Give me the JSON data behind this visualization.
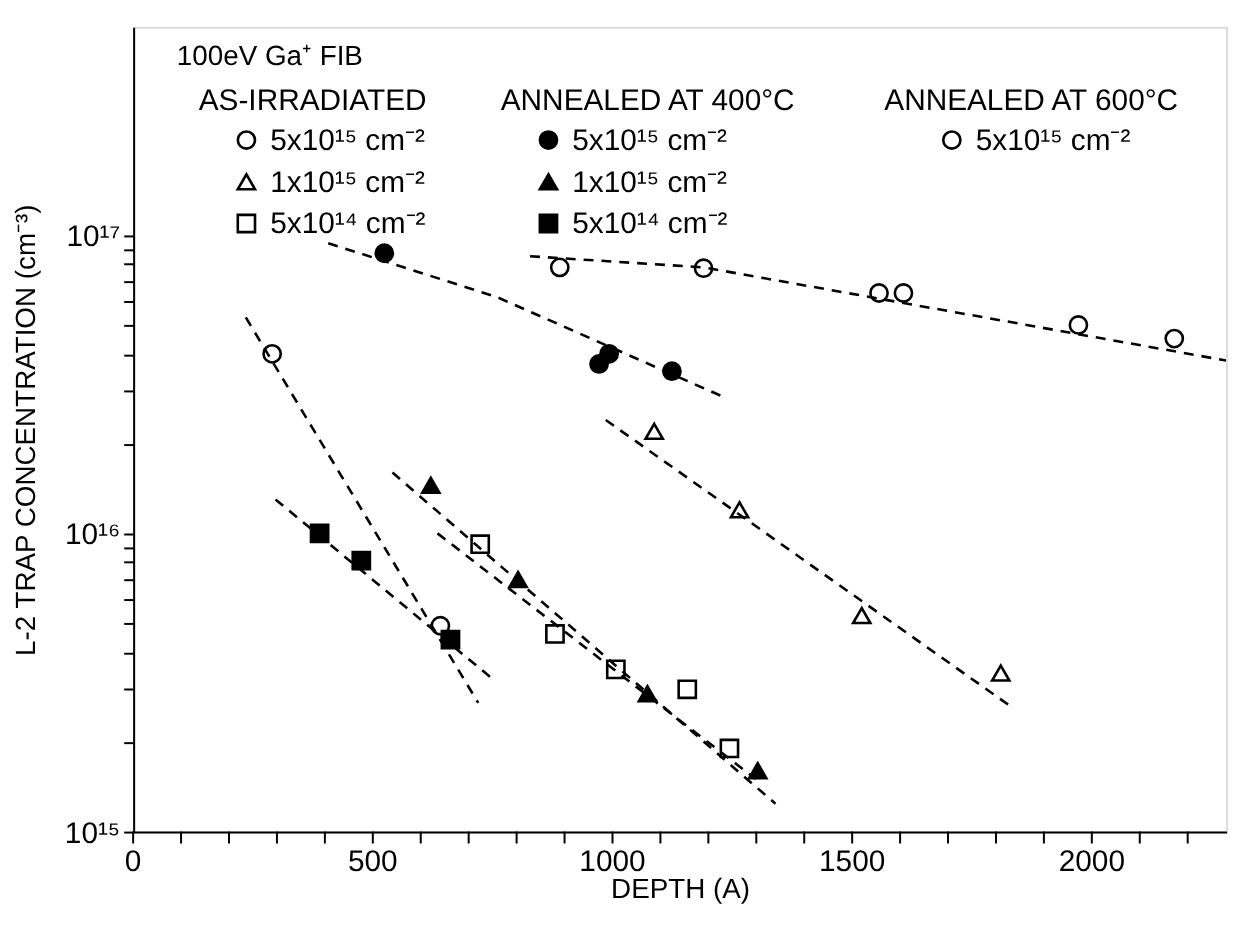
{
  "chart_data": {
    "type": "scatter",
    "xlabel": "DEPTH (A)",
    "ylabel": "L-2 TRAP CONCENTRATION (cm⁻³)",
    "legend_title": "100eV Ga⁺ FIB",
    "annotations": [
      "AS-IRRADIATED",
      "ANNEALED AT 400°C",
      "ANNEALED AT 600°C"
    ],
    "log": "y",
    "grid": false,
    "legend": "top left",
    "xlim": [
      0,
      2280
    ],
    "ylim": [
      1000000000000000.0,
      5e+17
    ],
    "xticks": [
      0,
      {
        "value": 100,
        "label": null
      },
      {
        "value": 200,
        "label": null
      },
      {
        "value": 300,
        "label": null
      },
      {
        "value": 400,
        "label": null
      },
      500,
      {
        "value": 600,
        "label": null
      },
      {
        "value": 700,
        "label": null
      },
      {
        "value": 800,
        "label": null
      },
      {
        "value": 900,
        "label": null
      },
      1000,
      {
        "value": 1100,
        "label": null
      },
      {
        "value": 1200,
        "label": null
      },
      {
        "value": 1300,
        "label": null
      },
      {
        "value": 1400,
        "label": null
      },
      1500,
      {
        "value": 1600,
        "label": null
      },
      {
        "value": 1700,
        "label": null
      },
      {
        "value": 1800,
        "label": null
      },
      {
        "value": 1900,
        "label": null
      },
      2000,
      {
        "value": 2100,
        "label": null
      },
      {
        "value": 2200,
        "label": null
      }
    ],
    "yticks": [
      {
        "value": 1000000000000000.0,
        "label": "10¹⁵"
      },
      {
        "value": 2000000000000000.0,
        "label": null
      },
      {
        "value": 3000000000000000.0,
        "label": null
      },
      {
        "value": 4000000000000000.0,
        "label": null
      },
      {
        "value": 5000000000000000.0,
        "label": null
      },
      {
        "value": 6000000000000000.0,
        "label": null
      },
      {
        "value": 7000000000000000.0,
        "label": null
      },
      {
        "value": 8000000000000000.0,
        "label": null
      },
      {
        "value": 9000000000000000.0,
        "label": null
      },
      {
        "value": 1e+16,
        "label": "10¹⁶"
      },
      {
        "value": 2e+16,
        "label": null
      },
      {
        "value": 3e+16,
        "label": null
      },
      {
        "value": 4e+16,
        "label": null
      },
      {
        "value": 5e+16,
        "label": null
      },
      {
        "value": 6e+16,
        "label": null
      },
      {
        "value": 7e+16,
        "label": null
      },
      {
        "value": 8e+16,
        "label": null
      },
      {
        "value": 9e+16,
        "label": null
      },
      {
        "value": 1e+17,
        "label": "10¹⁷"
      }
    ],
    "series": [
      {
        "name": "5x10¹⁵ cm⁻²",
        "marker": "circle",
        "color": "#ffffff",
        "x": [
          290,
          641
        ],
        "values": [
          4e+16,
          4900000000000000.0
        ]
      },
      {
        "name": "1x10¹⁵ cm⁻²",
        "marker": "triangle",
        "color": "#ffffff",
        "x": [
          1087,
          1265,
          1520,
          1810
        ],
        "values": [
          2.2e+16,
          1.2e+16,
          5300000000000000.0,
          3400000000000000.0
        ]
      },
      {
        "name": "5x10¹⁴ cm⁻²",
        "marker": "square",
        "color": "#ffffff",
        "x": [
          724,
          880,
          1007,
          1156,
          1244
        ],
        "values": [
          9200000000000000.0,
          4600000000000000.0,
          3500000000000000.0,
          3000000000000000.0,
          1900000000000000.0
        ]
      },
      {
        "name": "5x10¹⁵ cm⁻²",
        "marker": "circle",
        "color": "#000000",
        "x": [
          524,
          972,
          993,
          1124
        ],
        "values": [
          8.7e+16,
          3.7e+16,
          4e+16,
          3.5e+16
        ]
      },
      {
        "name": "1x10¹⁵ cm⁻²",
        "marker": "triangle",
        "color": "#000000",
        "x": [
          621,
          803,
          1073,
          1303
        ],
        "values": [
          1.45e+16,
          7000000000000000.0,
          2900000000000000.0,
          1600000000000000.0
        ]
      },
      {
        "name": "5x10¹⁴ cm⁻²",
        "marker": "square",
        "color": "#000000",
        "x": [
          389,
          476,
          662
        ],
        "values": [
          1e+16,
          8100000000000000.0,
          4400000000000000.0
        ]
      },
      {
        "name": "5x10¹⁵ cm⁻²",
        "marker": "circle",
        "color": "#ffffff",
        "x": [
          890,
          1190,
          1556,
          1607,
          1972,
          2172
        ],
        "values": [
          7.8e+16,
          7.75e+16,
          6.4e+16,
          6.4e+16,
          5e+16,
          4.5e+16
        ]
      },
      {
        "type": "line",
        "line_style": "dashed",
        "color": "#000000",
        "x": [
          235,
          720
        ],
        "values": [
          5.3e+16,
          2700000000000000.0
        ]
      },
      {
        "type": "line",
        "line_style": "dashed",
        "color": "#000000",
        "x": [
          986,
          1835
        ],
        "values": [
          2.4e+16,
          2600000000000000.0
        ]
      },
      {
        "type": "line",
        "line_style": "dashed",
        "color": "#000000",
        "x": [
          635,
          1299
        ],
        "values": [
          1e+16,
          1500000000000000.0
        ]
      },
      {
        "type": "line",
        "line_style": "dashed",
        "color": "#000000",
        "x": [
          407,
          759,
          1225
        ],
        "values": [
          9.4e+16,
          6.2e+16,
          2.9e+16
        ]
      },
      {
        "type": "line",
        "line_style": "dashed",
        "color": "#000000",
        "x": [
          541,
          1340
        ],
        "values": [
          1.6e+16,
          1240000000000000.0
        ]
      },
      {
        "type": "line",
        "line_style": "dashed",
        "color": "#000000",
        "x": [
          297,
          745
        ],
        "values": [
          1.3e+16,
          3300000000000000.0
        ]
      },
      {
        "type": "line",
        "line_style": "dashed",
        "color": "#000000",
        "x": [
          828,
          1190,
          2280
        ],
        "values": [
          8.5e+16,
          7.8e+16,
          3.8e+16
        ]
      }
    ]
  }
}
